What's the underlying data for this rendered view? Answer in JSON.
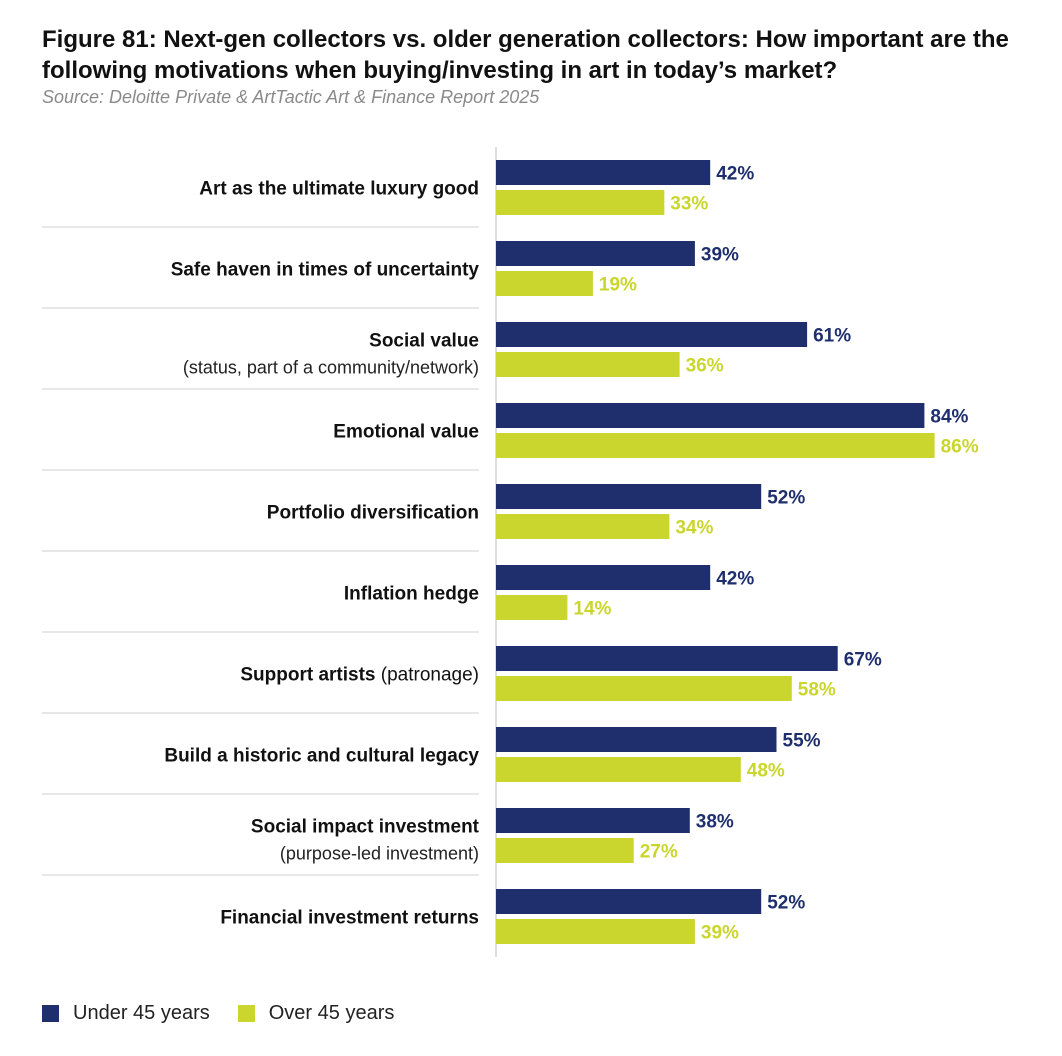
{
  "title": "Figure 81: Next-gen collectors vs. older generation collectors: How important are the following motivations when buying/investing in art in today’s market?",
  "source": "Source: Deloitte Private & ArtTactic Art & Finance Report 2025",
  "colors": {
    "under45": "#1f2f6e",
    "over45": "#cad62d",
    "divider": "#cfcfcf",
    "axis": "#bdbdbd"
  },
  "chart_data": {
    "type": "bar",
    "orientation": "horizontal",
    "categories": [
      {
        "label": "Art as the ultimate luxury good",
        "sub_inline": "",
        "sub": ""
      },
      {
        "label": "Safe haven in times of uncertainty",
        "sub_inline": "",
        "sub": ""
      },
      {
        "label": "Social value",
        "sub_inline": "",
        "sub": "(status, part of a community/network)"
      },
      {
        "label": "Emotional value",
        "sub_inline": "",
        "sub": ""
      },
      {
        "label": "Portfolio diversification",
        "sub_inline": "",
        "sub": ""
      },
      {
        "label": "Inflation hedge",
        "sub_inline": "",
        "sub": ""
      },
      {
        "label": "Support artists",
        "sub_inline": "(patronage)",
        "sub": ""
      },
      {
        "label": "Build a historic and cultural legacy",
        "sub_inline": "",
        "sub": ""
      },
      {
        "label": "Social impact investment",
        "sub_inline": "",
        "sub": "(purpose-led investment)"
      },
      {
        "label": "Financial investment returns",
        "sub_inline": "",
        "sub": ""
      }
    ],
    "series": [
      {
        "name": "Under 45 years",
        "values": [
          42,
          39,
          61,
          84,
          52,
          42,
          67,
          55,
          38,
          52
        ]
      },
      {
        "name": "Over 45 years",
        "values": [
          33,
          19,
          36,
          86,
          34,
          14,
          58,
          48,
          27,
          39
        ]
      }
    ],
    "value_suffix": "%",
    "xlim": [
      0,
      100
    ],
    "legend_position": "bottom-left"
  }
}
